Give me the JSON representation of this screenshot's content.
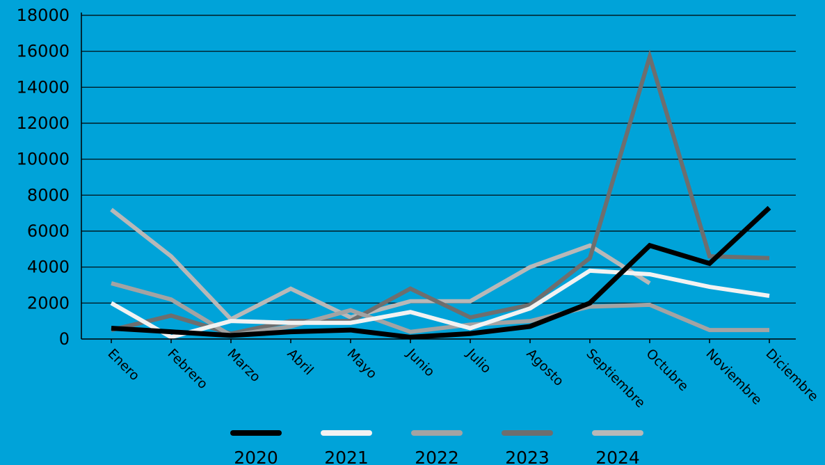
{
  "chart_data": {
    "type": "line",
    "title": "",
    "xlabel": "",
    "ylabel": "",
    "ylim": [
      0,
      18000
    ],
    "yticks": [
      0,
      2000,
      4000,
      6000,
      8000,
      10000,
      12000,
      14000,
      16000,
      18000
    ],
    "grid": "horizontal",
    "legend_position": "bottom",
    "categories": [
      "Enero",
      "Febrero",
      "Marzo",
      "Abril",
      "Mayo",
      "Junio",
      "Julio",
      "Agosto",
      "Septiembre",
      "Octubre",
      "Noviembre",
      "Diciembre"
    ],
    "series": [
      {
        "name": "2024",
        "color": "#b8b8b8",
        "values": [
          7200,
          4600,
          1100,
          2800,
          1200,
          2100,
          2100,
          4000,
          5200,
          3100,
          null,
          null
        ]
      },
      {
        "name": "2023",
        "color": "#6e6e6e",
        "values": [
          500,
          1300,
          300,
          1000,
          1000,
          2800,
          1200,
          1900,
          4500,
          15700,
          4600,
          4500
        ]
      },
      {
        "name": "2022",
        "color": "#a3a3a3",
        "values": [
          3100,
          2200,
          200,
          700,
          1600,
          400,
          800,
          1000,
          1800,
          1900,
          500,
          500
        ]
      },
      {
        "name": "2021",
        "color": "#f2f2f2",
        "values": [
          2000,
          100,
          1000,
          900,
          900,
          1500,
          600,
          1700,
          3800,
          3600,
          2900,
          2400
        ]
      },
      {
        "name": "2020",
        "color": "#000000",
        "values": [
          600,
          400,
          200,
          400,
          500,
          100,
          300,
          700,
          2000,
          5200,
          4200,
          7300
        ]
      }
    ]
  }
}
